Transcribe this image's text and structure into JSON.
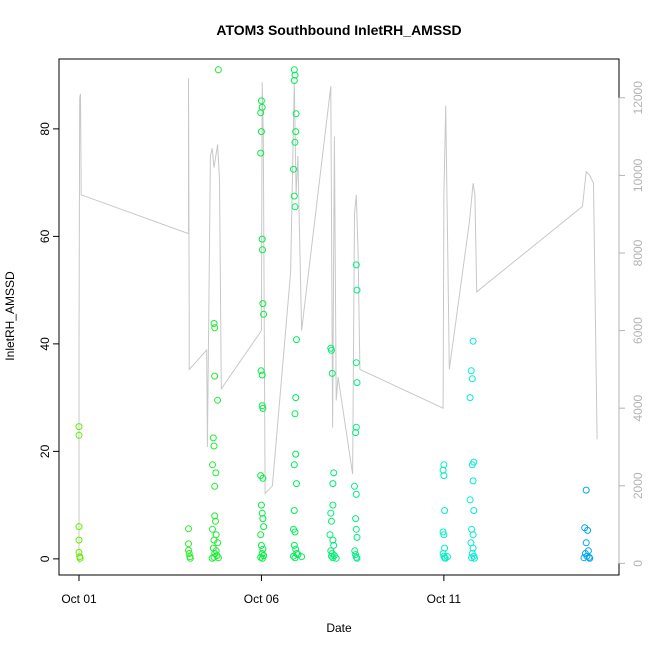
{
  "chart_data": {
    "type": "scatter",
    "title": "ATOM3 Southbound InletRH_AMSSD",
    "xlabel": "Date",
    "ylabel": "InletRH_AMSSD",
    "x_axis": {
      "ticks": [
        {
          "label": "Oct 01",
          "day": 1
        },
        {
          "label": "Oct 06",
          "day": 6
        },
        {
          "label": "Oct 11",
          "day": 11
        }
      ],
      "range_days": [
        1,
        15.8
      ]
    },
    "y_left": {
      "range": [
        -3,
        93
      ],
      "ticks": [
        0,
        20,
        40,
        60,
        80
      ]
    },
    "y_right": {
      "range": [
        -300,
        13000
      ],
      "ticks": [
        0,
        2000,
        4000,
        6000,
        8000,
        10000,
        12000
      ],
      "color": "#b3b3b3"
    },
    "colors": {
      "points_start": "#66ee00",
      "points_mid": "#00ee44",
      "points_end": "#0088ee",
      "altitude_line": "#c8c8c8"
    },
    "series": [
      {
        "kind": "points",
        "points": [
          [
            1.0,
            24.6
          ],
          [
            1.0,
            23.0
          ],
          [
            1.0,
            6.0
          ],
          [
            1.0,
            3.5
          ],
          [
            1.0,
            1.2
          ],
          [
            1.02,
            0.4
          ],
          [
            1.03,
            0.1
          ],
          [
            4.0,
            5.6
          ],
          [
            4.0,
            2.8
          ],
          [
            4.0,
            1.6
          ],
          [
            4.02,
            1.0
          ],
          [
            4.04,
            0.4
          ],
          [
            4.05,
            0.1
          ],
          [
            4.7,
            43.8
          ],
          [
            4.72,
            43.0
          ],
          [
            4.68,
            22.5
          ],
          [
            4.7,
            21.0
          ],
          [
            4.66,
            17.5
          ],
          [
            4.75,
            16.0
          ],
          [
            4.72,
            13.5
          ],
          [
            4.8,
            29.5
          ],
          [
            4.72,
            34.0
          ],
          [
            4.72,
            8.0
          ],
          [
            4.74,
            7.0
          ],
          [
            4.66,
            5.5
          ],
          [
            4.76,
            4.5
          ],
          [
            4.7,
            3.5
          ],
          [
            4.8,
            3.0
          ],
          [
            4.68,
            2.0
          ],
          [
            4.76,
            1.5
          ],
          [
            4.72,
            1.0
          ],
          [
            4.78,
            0.6
          ],
          [
            4.7,
            0.3
          ],
          [
            4.65,
            0.1
          ],
          [
            4.82,
            0.2
          ],
          [
            4.82,
            91.0
          ],
          [
            6.0,
            85.2
          ],
          [
            6.02,
            84.0
          ],
          [
            5.98,
            83.0
          ],
          [
            6.0,
            79.5
          ],
          [
            5.98,
            75.5
          ],
          [
            6.02,
            59.5
          ],
          [
            6.03,
            57.5
          ],
          [
            6.04,
            47.5
          ],
          [
            6.06,
            45.5
          ],
          [
            5.99,
            35.0
          ],
          [
            6.02,
            34.2
          ],
          [
            6.02,
            28.5
          ],
          [
            6.04,
            28.0
          ],
          [
            5.98,
            15.5
          ],
          [
            6.04,
            15.0
          ],
          [
            6.0,
            10.0
          ],
          [
            6.02,
            8.5
          ],
          [
            6.04,
            7.5
          ],
          [
            6.06,
            6.0
          ],
          [
            5.98,
            4.5
          ],
          [
            6.0,
            2.5
          ],
          [
            6.04,
            1.8
          ],
          [
            6.02,
            1.0
          ],
          [
            6.06,
            0.6
          ],
          [
            5.98,
            0.3
          ],
          [
            6.03,
            0.1
          ],
          [
            6.9,
            91.0
          ],
          [
            6.92,
            90.0
          ],
          [
            6.9,
            89.0
          ],
          [
            6.95,
            82.8
          ],
          [
            6.94,
            79.5
          ],
          [
            6.92,
            77.5
          ],
          [
            6.88,
            72.5
          ],
          [
            6.9,
            67.5
          ],
          [
            6.92,
            65.5
          ],
          [
            6.96,
            40.8
          ],
          [
            6.94,
            30.0
          ],
          [
            6.92,
            27.0
          ],
          [
            6.94,
            19.5
          ],
          [
            6.9,
            17.5
          ],
          [
            6.96,
            14.0
          ],
          [
            6.9,
            9.0
          ],
          [
            6.88,
            5.5
          ],
          [
            6.92,
            5.0
          ],
          [
            6.9,
            2.5
          ],
          [
            6.94,
            1.8
          ],
          [
            6.96,
            1.0
          ],
          [
            6.88,
            0.5
          ],
          [
            6.92,
            0.2
          ],
          [
            7.0,
            0.8
          ],
          [
            7.1,
            0.4
          ],
          [
            7.9,
            39.2
          ],
          [
            7.92,
            38.8
          ],
          [
            7.94,
            34.5
          ],
          [
            7.98,
            16.0
          ],
          [
            7.96,
            14.0
          ],
          [
            7.96,
            10.0
          ],
          [
            7.9,
            8.5
          ],
          [
            7.92,
            7.0
          ],
          [
            7.88,
            4.5
          ],
          [
            7.96,
            3.5
          ],
          [
            7.98,
            2.5
          ],
          [
            7.9,
            1.5
          ],
          [
            7.94,
            1.0
          ],
          [
            7.92,
            0.5
          ],
          [
            7.96,
            0.2
          ],
          [
            8.0,
            0.6
          ],
          [
            8.05,
            0.1
          ],
          [
            8.6,
            54.7
          ],
          [
            8.62,
            50.0
          ],
          [
            8.6,
            36.5
          ],
          [
            8.62,
            32.8
          ],
          [
            8.6,
            24.5
          ],
          [
            8.58,
            23.5
          ],
          [
            8.55,
            13.5
          ],
          [
            8.6,
            12.0
          ],
          [
            8.58,
            7.5
          ],
          [
            8.6,
            5.5
          ],
          [
            8.62,
            4.0
          ],
          [
            8.56,
            1.5
          ],
          [
            8.58,
            0.8
          ],
          [
            8.6,
            0.3
          ],
          [
            8.62,
            0.1
          ],
          [
            11.0,
            17.5
          ],
          [
            10.98,
            16.5
          ],
          [
            11.0,
            15.5
          ],
          [
            11.02,
            9.0
          ],
          [
            10.98,
            5.0
          ],
          [
            11.0,
            4.5
          ],
          [
            11.02,
            2.0
          ],
          [
            10.98,
            1.0
          ],
          [
            11.0,
            0.5
          ],
          [
            11.02,
            0.2
          ],
          [
            11.04,
            0.1
          ],
          [
            11.1,
            0.4
          ],
          [
            11.8,
            40.5
          ],
          [
            11.75,
            35.0
          ],
          [
            11.78,
            33.5
          ],
          [
            11.72,
            30.0
          ],
          [
            11.82,
            18.0
          ],
          [
            11.78,
            17.5
          ],
          [
            11.8,
            14.5
          ],
          [
            11.72,
            11.0
          ],
          [
            11.82,
            9.0
          ],
          [
            11.76,
            5.5
          ],
          [
            11.8,
            4.5
          ],
          [
            11.74,
            3.0
          ],
          [
            11.8,
            2.0
          ],
          [
            11.78,
            1.0
          ],
          [
            11.82,
            0.5
          ],
          [
            11.76,
            0.2
          ],
          [
            11.84,
            0.1
          ],
          [
            14.9,
            12.8
          ],
          [
            14.86,
            5.8
          ],
          [
            14.94,
            5.3
          ],
          [
            14.9,
            3.0
          ],
          [
            14.96,
            1.5
          ],
          [
            14.88,
            1.0
          ],
          [
            14.92,
            0.5
          ],
          [
            14.98,
            0.3
          ],
          [
            15.0,
            0.1
          ],
          [
            14.84,
            0.2
          ]
        ]
      },
      {
        "kind": "line",
        "name_axis": "right",
        "points": [
          [
            1.0,
            0
          ],
          [
            1.0,
            5500
          ],
          [
            1.02,
            12000
          ],
          [
            1.04,
            12100
          ],
          [
            1.06,
            9500
          ],
          [
            4.0,
            8500
          ],
          [
            4.0,
            12500
          ],
          [
            4.02,
            6500
          ],
          [
            4.02,
            5000
          ],
          [
            4.5,
            5500
          ],
          [
            4.52,
            3000
          ],
          [
            4.6,
            10500
          ],
          [
            4.65,
            10700
          ],
          [
            4.7,
            10200
          ],
          [
            4.8,
            10800
          ],
          [
            4.85,
            9900
          ],
          [
            4.9,
            4500
          ],
          [
            6.0,
            6000
          ],
          [
            6.02,
            12400
          ],
          [
            6.05,
            11000
          ],
          [
            6.1,
            1800
          ],
          [
            6.3,
            2000
          ],
          [
            6.8,
            7500
          ],
          [
            6.9,
            12400
          ],
          [
            6.95,
            9500
          ],
          [
            7.0,
            10500
          ],
          [
            7.1,
            6000
          ],
          [
            7.9,
            12300
          ],
          [
            7.95,
            3500
          ],
          [
            8.0,
            11000
          ],
          [
            8.05,
            4200
          ],
          [
            8.1,
            4800
          ],
          [
            8.5,
            2300
          ],
          [
            8.55,
            9000
          ],
          [
            8.6,
            9500
          ],
          [
            8.65,
            8000
          ],
          [
            8.7,
            5000
          ],
          [
            10.98,
            4000
          ],
          [
            11.0,
            9500
          ],
          [
            11.05,
            11800
          ],
          [
            11.1,
            8500
          ],
          [
            11.15,
            5000
          ],
          [
            11.7,
            8800
          ],
          [
            11.8,
            9800
          ],
          [
            11.85,
            9500
          ],
          [
            11.9,
            7000
          ],
          [
            14.8,
            9200
          ],
          [
            14.9,
            10100
          ],
          [
            15.0,
            10000
          ],
          [
            15.1,
            9800
          ],
          [
            15.2,
            3200
          ]
        ]
      }
    ]
  }
}
